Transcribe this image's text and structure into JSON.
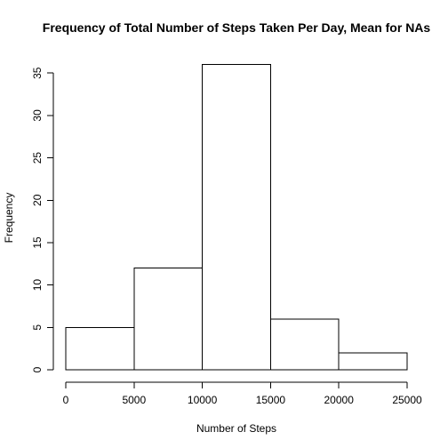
{
  "chart_data": {
    "type": "bar",
    "subtype": "histogram",
    "title": "Frequency of Total Number of Steps Taken Per Day, Mean for NAs",
    "xlabel": "Number of Steps",
    "ylabel": "Frequency",
    "bins": [
      {
        "start": 0,
        "end": 5000,
        "count": 5
      },
      {
        "start": 5000,
        "end": 10000,
        "count": 12
      },
      {
        "start": 10000,
        "end": 15000,
        "count": 36
      },
      {
        "start": 15000,
        "end": 20000,
        "count": 6
      },
      {
        "start": 20000,
        "end": 25000,
        "count": 2
      }
    ],
    "xlim": [
      0,
      25000
    ],
    "ylim": [
      0,
      36
    ],
    "xticks": [
      0,
      5000,
      10000,
      15000,
      20000,
      25000
    ],
    "xtick_labels": [
      "0",
      "5000",
      "10000",
      "15000",
      "20000",
      "25000"
    ],
    "yticks": [
      0,
      5,
      10,
      15,
      20,
      25,
      30,
      35
    ],
    "ytick_labels": [
      "0",
      "5",
      "10",
      "15",
      "20",
      "25",
      "30",
      "35"
    ],
    "grid": false,
    "legend": "none",
    "bar_fill": "#ffffff",
    "bar_stroke": "#000000"
  }
}
